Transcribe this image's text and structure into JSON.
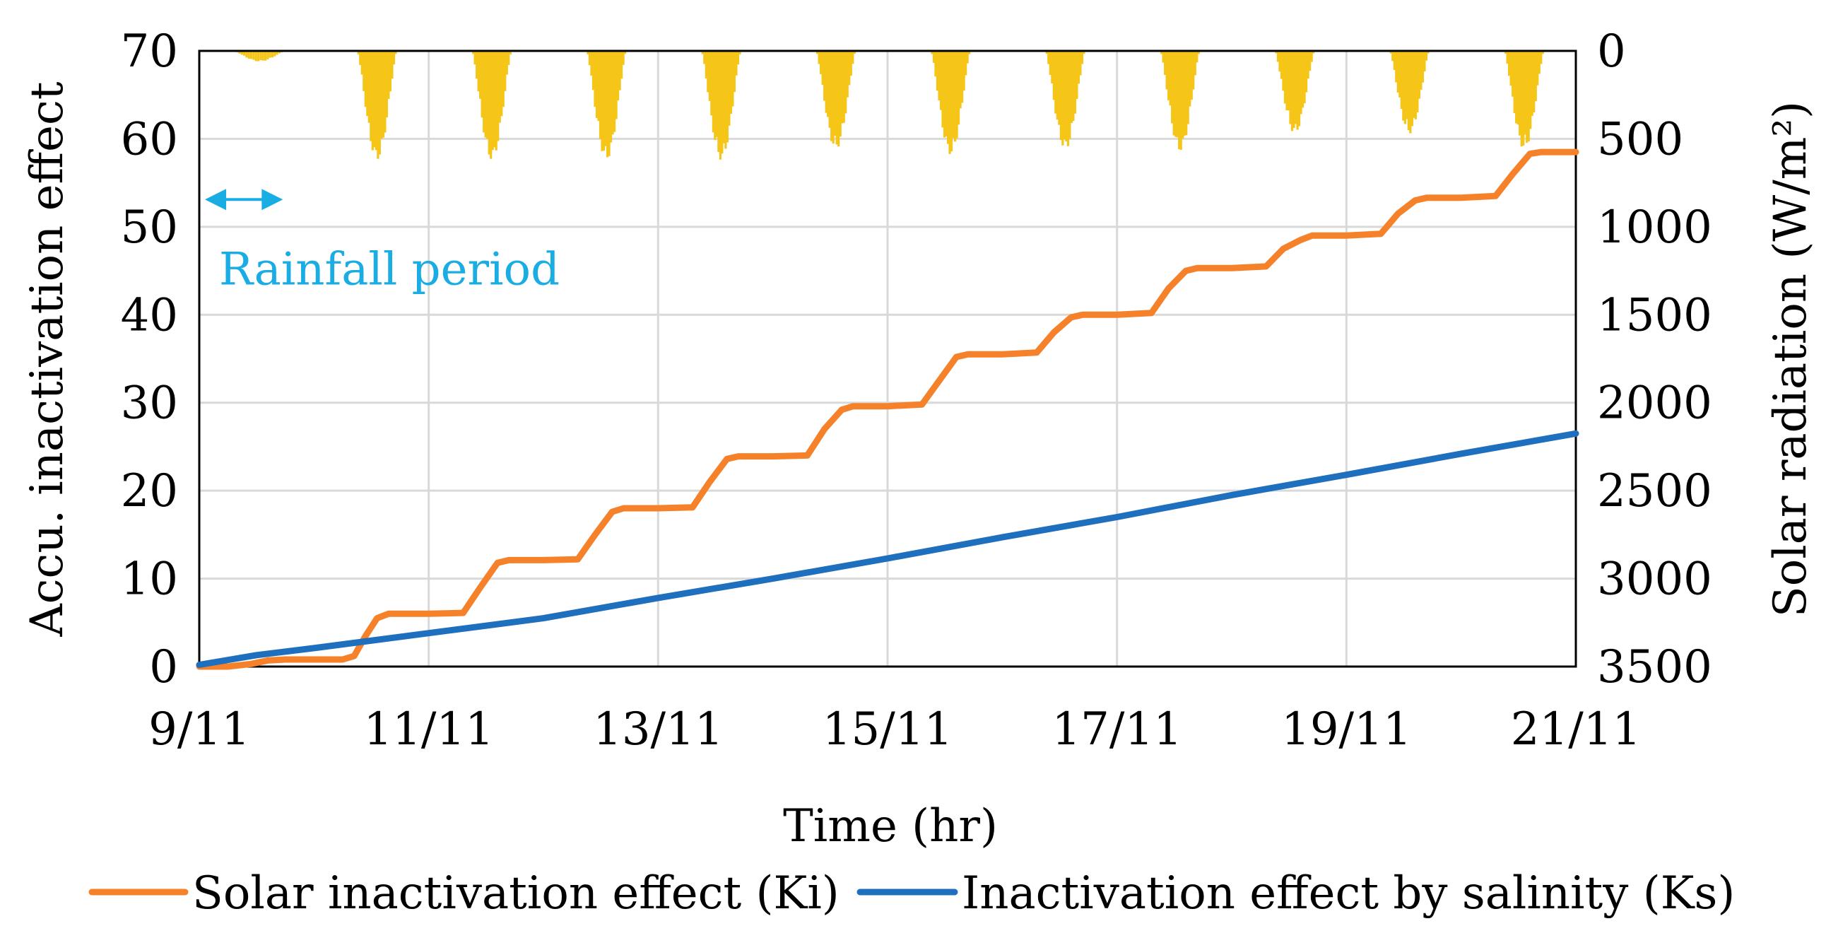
{
  "chart_data": {
    "type": "line",
    "title": "",
    "xlabel": "Time (hr)",
    "ylabel": "Accu. inactivation effect",
    "ylabel_right": "Solar radiation (W/m²)",
    "grid": true,
    "legend_position": "bottom",
    "x_domain": [
      0,
      12
    ],
    "x_ticks": [
      {
        "value": 0,
        "label": "9/11"
      },
      {
        "value": 2,
        "label": "11/11"
      },
      {
        "value": 4,
        "label": "13/11"
      },
      {
        "value": 6,
        "label": "15/11"
      },
      {
        "value": 8,
        "label": "17/11"
      },
      {
        "value": 10,
        "label": "19/11"
      },
      {
        "value": 12,
        "label": "21/11"
      }
    ],
    "y_left": {
      "min": 0,
      "max": 70,
      "ticks": [
        "0",
        "10",
        "20",
        "30",
        "40",
        "50",
        "60",
        "70"
      ]
    },
    "y_right": {
      "min": 0,
      "max": 3500,
      "inverted": true,
      "ticks": [
        "0",
        "500",
        "1000",
        "1500",
        "2000",
        "2500",
        "3000",
        "3500"
      ]
    },
    "series": [
      {
        "name": "Solar inactivation effect (Ki)",
        "color": "#F5822A",
        "axis": "left",
        "points": [
          [
            0,
            0.0
          ],
          [
            0.25,
            0.0
          ],
          [
            0.45,
            0.3
          ],
          [
            0.6,
            0.7
          ],
          [
            0.75,
            0.8
          ],
          [
            1.0,
            0.8
          ],
          [
            1.25,
            0.8
          ],
          [
            1.35,
            1.2
          ],
          [
            1.45,
            3.5
          ],
          [
            1.55,
            5.5
          ],
          [
            1.65,
            6.0
          ],
          [
            2.0,
            6.0
          ],
          [
            2.3,
            6.1
          ],
          [
            2.45,
            9.0
          ],
          [
            2.6,
            11.8
          ],
          [
            2.7,
            12.1
          ],
          [
            3.0,
            12.1
          ],
          [
            3.3,
            12.2
          ],
          [
            3.45,
            15.0
          ],
          [
            3.6,
            17.6
          ],
          [
            3.7,
            18.0
          ],
          [
            4.0,
            18.0
          ],
          [
            4.3,
            18.1
          ],
          [
            4.45,
            21.0
          ],
          [
            4.6,
            23.6
          ],
          [
            4.7,
            23.9
          ],
          [
            5.0,
            23.9
          ],
          [
            5.3,
            24.0
          ],
          [
            5.45,
            27.0
          ],
          [
            5.6,
            29.2
          ],
          [
            5.7,
            29.6
          ],
          [
            6.0,
            29.6
          ],
          [
            6.3,
            29.8
          ],
          [
            6.45,
            32.5
          ],
          [
            6.6,
            35.2
          ],
          [
            6.7,
            35.5
          ],
          [
            7.0,
            35.5
          ],
          [
            7.3,
            35.7
          ],
          [
            7.45,
            38.0
          ],
          [
            7.6,
            39.7
          ],
          [
            7.7,
            40.0
          ],
          [
            8.0,
            40.0
          ],
          [
            8.3,
            40.2
          ],
          [
            8.45,
            43.0
          ],
          [
            8.6,
            45.0
          ],
          [
            8.7,
            45.3
          ],
          [
            9.0,
            45.3
          ],
          [
            9.3,
            45.5
          ],
          [
            9.45,
            47.5
          ],
          [
            9.6,
            48.5
          ],
          [
            9.7,
            49.0
          ],
          [
            10.0,
            49.0
          ],
          [
            10.3,
            49.2
          ],
          [
            10.45,
            51.5
          ],
          [
            10.6,
            53.0
          ],
          [
            10.7,
            53.3
          ],
          [
            11.0,
            53.3
          ],
          [
            11.3,
            53.5
          ],
          [
            11.45,
            56.0
          ],
          [
            11.6,
            58.3
          ],
          [
            11.7,
            58.5
          ],
          [
            12.0,
            58.5
          ]
        ]
      },
      {
        "name": "Inactivation effect by salinity (Ks)",
        "color": "#1F6FBF",
        "axis": "left",
        "points": [
          [
            0,
            0.2
          ],
          [
            0.5,
            1.3
          ],
          [
            1,
            2.1
          ],
          [
            2,
            3.8
          ],
          [
            3,
            5.5
          ],
          [
            4,
            7.8
          ],
          [
            5,
            10.0
          ],
          [
            6,
            12.3
          ],
          [
            7,
            14.7
          ],
          [
            8,
            17.0
          ],
          [
            9,
            19.5
          ],
          [
            10,
            21.8
          ],
          [
            11,
            24.2
          ],
          [
            12,
            26.5
          ]
        ]
      }
    ],
    "radiation_bars": {
      "name": "Solar radiation",
      "color": "#F5C518",
      "axis": "right",
      "days": [
        {
          "start": 0.3,
          "end": 0.75,
          "peak": 60
        },
        {
          "start": 1.38,
          "end": 1.72,
          "peak": 620
        },
        {
          "start": 2.38,
          "end": 2.72,
          "peak": 620
        },
        {
          "start": 3.38,
          "end": 3.72,
          "peak": 620
        },
        {
          "start": 4.38,
          "end": 4.72,
          "peak": 620
        },
        {
          "start": 5.38,
          "end": 5.72,
          "peak": 560
        },
        {
          "start": 6.38,
          "end": 6.72,
          "peak": 590
        },
        {
          "start": 7.38,
          "end": 7.72,
          "peak": 560
        },
        {
          "start": 8.38,
          "end": 8.72,
          "peak": 570
        },
        {
          "start": 9.38,
          "end": 9.72,
          "peak": 470
        },
        {
          "start": 10.38,
          "end": 10.72,
          "peak": 470
        },
        {
          "start": 11.38,
          "end": 11.72,
          "peak": 560
        }
      ]
    },
    "annotations": [
      {
        "text": "Rainfall period",
        "color": "#1AADE4",
        "x_start": 0.0,
        "x_end": 1.0,
        "y_value": 53.5
      }
    ]
  }
}
